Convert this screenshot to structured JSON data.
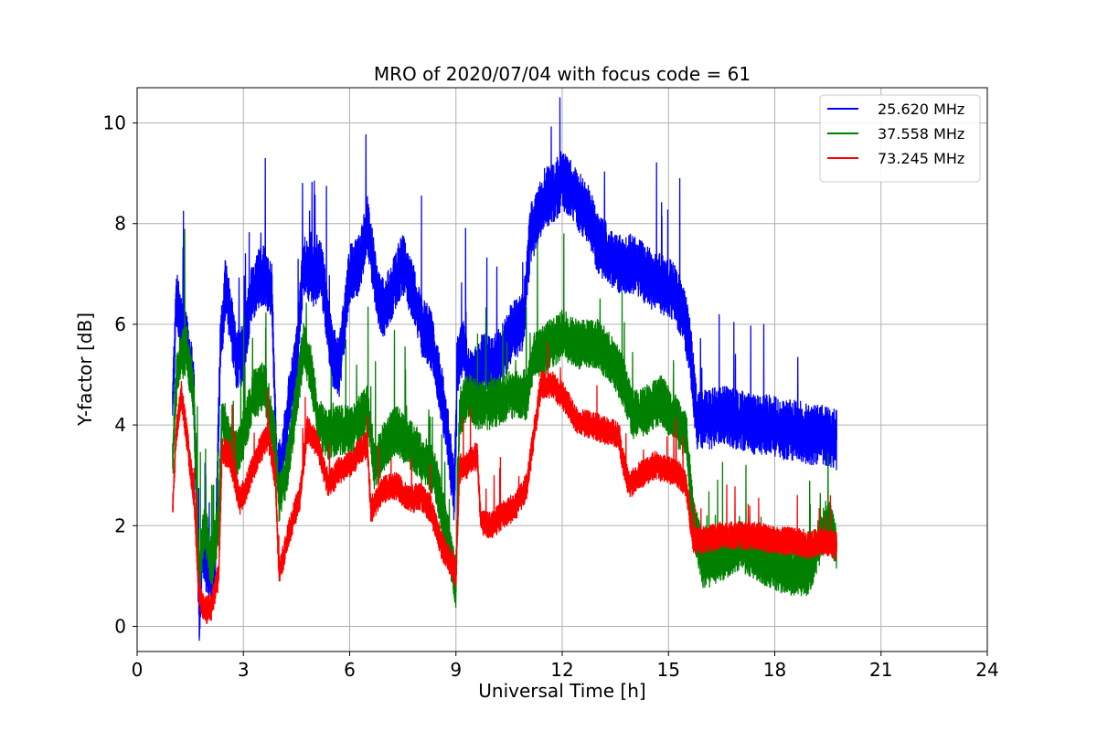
{
  "chart_data": {
    "type": "line",
    "title": "MRO of 2020/07/04 with focus code = 61",
    "xlabel": "Universal Time [h]",
    "ylabel": "Y-factor [dB]",
    "xlim": [
      0,
      24
    ],
    "ylim": [
      -0.5,
      10.7
    ],
    "xticks": [
      0,
      3,
      6,
      9,
      12,
      15,
      18,
      21,
      24
    ],
    "yticks": [
      0,
      2,
      4,
      6,
      8,
      10
    ],
    "xtick_labels": [
      "0",
      "3",
      "6",
      "9",
      "12",
      "15",
      "18",
      "21",
      "24"
    ],
    "ytick_labels": [
      "0",
      "2",
      "4",
      "6",
      "8",
      "10"
    ],
    "grid": true,
    "legend_position": "top-right",
    "series": [
      {
        "name": "25.620 MHz",
        "color": "#0000ff",
        "noise": 0.6,
        "x": [
          1.0,
          1.1,
          1.2,
          1.4,
          1.6,
          1.7,
          1.75,
          1.85,
          2.0,
          2.2,
          2.35,
          2.5,
          2.8,
          3.0,
          3.2,
          3.4,
          3.6,
          3.8,
          3.95,
          4.1,
          4.3,
          4.5,
          4.7,
          4.9,
          5.2,
          5.5,
          5.7,
          6.0,
          6.3,
          6.5,
          6.8,
          7.0,
          7.3,
          7.5,
          7.8,
          8.0,
          8.3,
          8.6,
          8.8,
          8.95,
          9.05,
          9.2,
          9.4,
          9.6,
          9.8,
          10.0,
          10.3,
          10.6,
          10.9,
          11.1,
          11.3,
          11.5,
          11.8,
          12.0,
          12.2,
          12.5,
          12.8,
          13.0,
          13.3,
          13.6,
          13.9,
          14.2,
          14.5,
          14.8,
          15.1,
          15.4,
          15.6,
          15.8,
          16.1,
          16.5,
          17.0,
          17.5,
          17.9,
          18.2,
          18.6,
          19.0,
          19.4,
          19.75
        ],
        "y": [
          4.3,
          6.5,
          6.2,
          5.6,
          4.8,
          1.5,
          0.2,
          1.6,
          1.1,
          1.0,
          5.5,
          6.8,
          5.3,
          5.4,
          6.5,
          6.9,
          7.0,
          6.6,
          3.0,
          3.3,
          4.5,
          5.3,
          7.2,
          6.9,
          7.1,
          5.4,
          5.1,
          7.0,
          7.2,
          8.0,
          6.5,
          6.3,
          6.9,
          7.2,
          6.6,
          6.0,
          5.7,
          4.6,
          3.6,
          2.6,
          5.2,
          5.5,
          4.9,
          5.0,
          5.3,
          5.1,
          5.4,
          5.9,
          6.0,
          7.8,
          8.1,
          8.5,
          8.6,
          8.9,
          8.7,
          8.4,
          8.1,
          7.6,
          7.4,
          7.2,
          7.2,
          7.1,
          6.9,
          6.8,
          6.7,
          6.3,
          5.6,
          4.1,
          4.1,
          4.2,
          4.1,
          4.0,
          4.0,
          3.9,
          3.9,
          3.8,
          3.8,
          3.7
        ]
      },
      {
        "name": "37.558 MHz",
        "color": "#008000",
        "noise": 0.5,
        "x": [
          1.0,
          1.1,
          1.2,
          1.4,
          1.6,
          1.75,
          1.9,
          2.1,
          2.3,
          2.4,
          2.6,
          2.8,
          3.0,
          3.3,
          3.6,
          3.9,
          4.0,
          4.2,
          4.5,
          4.7,
          4.9,
          5.1,
          5.4,
          5.7,
          6.0,
          6.3,
          6.5,
          6.7,
          7.0,
          7.3,
          7.6,
          8.0,
          8.4,
          8.8,
          9.0,
          9.1,
          9.3,
          9.6,
          10.0,
          10.5,
          11.0,
          11.2,
          11.5,
          12.0,
          12.5,
          13.0,
          13.4,
          13.7,
          14.0,
          14.4,
          14.8,
          15.2,
          15.5,
          15.7,
          16.0,
          16.5,
          17.0,
          17.5,
          18.0,
          18.5,
          19.0,
          19.3,
          19.5,
          19.75
        ],
        "y": [
          3.2,
          4.8,
          5.3,
          5.5,
          4.5,
          0.9,
          2.1,
          1.2,
          2.1,
          4.2,
          3.6,
          3.4,
          3.8,
          4.6,
          4.8,
          3.6,
          2.5,
          3.0,
          4.5,
          5.6,
          5.1,
          4.1,
          3.8,
          3.9,
          3.9,
          4.1,
          4.3,
          3.2,
          3.6,
          3.9,
          3.7,
          3.4,
          3.0,
          1.7,
          0.8,
          4.2,
          4.6,
          4.4,
          4.4,
          4.6,
          4.6,
          5.4,
          5.5,
          5.8,
          5.6,
          5.6,
          5.3,
          4.9,
          4.2,
          4.3,
          4.5,
          4.1,
          3.8,
          2.1,
          1.2,
          1.4,
          1.6,
          1.4,
          1.2,
          1.1,
          1.1,
          1.8,
          2.1,
          1.5
        ]
      },
      {
        "name": "73.245 MHz",
        "color": "#ff0000",
        "noise": 0.28,
        "x": [
          1.0,
          1.1,
          1.25,
          1.4,
          1.6,
          1.75,
          1.9,
          2.1,
          2.3,
          2.4,
          2.6,
          2.9,
          3.1,
          3.4,
          3.7,
          3.9,
          4.0,
          4.1,
          4.3,
          4.6,
          4.8,
          5.1,
          5.4,
          5.7,
          6.0,
          6.3,
          6.5,
          6.6,
          6.9,
          7.3,
          7.7,
          8.0,
          8.3,
          8.6,
          8.9,
          9.0,
          9.1,
          9.3,
          9.6,
          9.7,
          10.0,
          10.3,
          10.7,
          11.0,
          11.2,
          11.4,
          11.7,
          12.0,
          12.4,
          12.8,
          13.2,
          13.6,
          13.7,
          13.9,
          14.2,
          14.6,
          15.0,
          15.3,
          15.5,
          15.7,
          16.0,
          16.5,
          17.0,
          17.5,
          18.0,
          18.5,
          19.0,
          19.3,
          19.75
        ],
        "y": [
          2.3,
          3.8,
          4.6,
          3.8,
          2.6,
          0.7,
          0.3,
          0.4,
          1.0,
          3.5,
          3.4,
          2.5,
          2.8,
          3.4,
          3.8,
          3.0,
          1.1,
          1.3,
          1.9,
          2.6,
          3.9,
          3.6,
          2.8,
          3.1,
          3.2,
          3.5,
          3.6,
          2.3,
          2.7,
          2.8,
          2.5,
          2.6,
          2.3,
          1.6,
          1.2,
          1.0,
          3.1,
          3.2,
          3.4,
          2.1,
          2.0,
          2.2,
          2.4,
          2.8,
          3.8,
          4.8,
          4.8,
          4.6,
          4.1,
          4.0,
          3.9,
          3.8,
          3.3,
          2.8,
          3.0,
          3.2,
          3.1,
          3.0,
          2.8,
          1.7,
          1.7,
          1.8,
          1.8,
          1.8,
          1.7,
          1.7,
          1.6,
          1.7,
          1.6
        ]
      }
    ]
  }
}
